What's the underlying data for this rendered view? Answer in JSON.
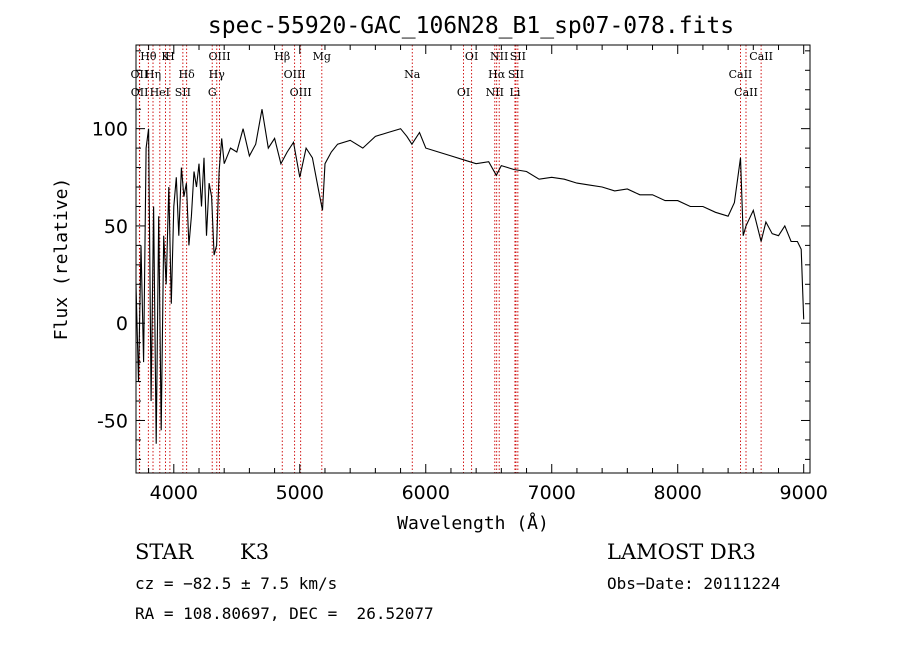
{
  "chart_data": {
    "type": "line",
    "title": "spec-55920-GAC_106N28_B1_sp07-078.fits",
    "xlabel": "Wavelength (Å)",
    "ylabel": "Flux (relative)",
    "xlim": [
      3700,
      9050
    ],
    "ylim": [
      -77,
      143
    ],
    "x_ticks": [
      4000,
      5000,
      6000,
      7000,
      8000,
      9000
    ],
    "y_ticks": [
      -50,
      0,
      50,
      100
    ],
    "series": [
      {
        "name": "flux",
        "x": [
          3700,
          3720,
          3740,
          3760,
          3780,
          3800,
          3820,
          3840,
          3860,
          3880,
          3900,
          3920,
          3940,
          3960,
          3980,
          4000,
          4020,
          4040,
          4060,
          4080,
          4100,
          4120,
          4140,
          4160,
          4180,
          4200,
          4220,
          4240,
          4260,
          4280,
          4300,
          4320,
          4340,
          4360,
          4380,
          4400,
          4450,
          4500,
          4550,
          4600,
          4650,
          4700,
          4750,
          4800,
          4850,
          4900,
          4950,
          5000,
          5050,
          5100,
          5150,
          5180,
          5200,
          5250,
          5300,
          5400,
          5500,
          5600,
          5700,
          5800,
          5850,
          5890,
          5950,
          6000,
          6100,
          6200,
          6300,
          6400,
          6500,
          6560,
          6600,
          6700,
          6800,
          6900,
          7000,
          7100,
          7200,
          7300,
          7400,
          7500,
          7600,
          7700,
          7800,
          7900,
          8000,
          8100,
          8200,
          8300,
          8400,
          8450,
          8498,
          8520,
          8542,
          8600,
          8662,
          8700,
          8750,
          8800,
          8850,
          8900,
          8950,
          8980,
          9000
        ],
        "values": [
          20,
          -30,
          40,
          -20,
          90,
          100,
          -40,
          60,
          -62,
          55,
          -55,
          45,
          20,
          70,
          10,
          60,
          75,
          45,
          80,
          65,
          72,
          40,
          55,
          78,
          70,
          82,
          60,
          85,
          45,
          72,
          65,
          35,
          40,
          78,
          95,
          82,
          90,
          88,
          100,
          86,
          92,
          110,
          90,
          95,
          82,
          88,
          93,
          75,
          90,
          85,
          68,
          58,
          82,
          88,
          92,
          94,
          90,
          96,
          98,
          100,
          96,
          92,
          98,
          90,
          88,
          86,
          84,
          82,
          83,
          76,
          81,
          79,
          78,
          74,
          75,
          74,
          72,
          71,
          70,
          68,
          69,
          66,
          66,
          63,
          63,
          60,
          60,
          57,
          55,
          62,
          85,
          45,
          50,
          58,
          42,
          52,
          46,
          45,
          50,
          42,
          42,
          38,
          2
        ]
      }
    ],
    "line_ids": [
      {
        "label": "Hθ",
        "x": 3798
      },
      {
        "label": "OII",
        "x": 3727
      },
      {
        "label": "OII",
        "x": 3729
      },
      {
        "label": "K",
        "x": 3934
      },
      {
        "label": "Hη",
        "x": 3835
      },
      {
        "label": "HeI",
        "x": 3889
      },
      {
        "label": "H",
        "x": 3969
      },
      {
        "label": "Hδ",
        "x": 4102
      },
      {
        "label": "SII",
        "x": 4072
      },
      {
        "label": "OIII",
        "x": 4363
      },
      {
        "label": "Hγ",
        "x": 4341
      },
      {
        "label": "G",
        "x": 4305
      },
      {
        "label": "Hβ",
        "x": 4861
      },
      {
        "label": "OIII",
        "x": 4959
      },
      {
        "label": "OIII",
        "x": 5007
      },
      {
        "label": "Mg",
        "x": 5175
      },
      {
        "label": "Na",
        "x": 5893
      },
      {
        "label": "OI",
        "x": 6300
      },
      {
        "label": "OI",
        "x": 6364
      },
      {
        "label": "Hα",
        "x": 6563
      },
      {
        "label": "NII",
        "x": 6548
      },
      {
        "label": "NII",
        "x": 6583
      },
      {
        "label": "SII",
        "x": 6716
      },
      {
        "label": "Li",
        "x": 6708
      },
      {
        "label": "SII",
        "x": 6731
      },
      {
        "label": "CaII",
        "x": 8498
      },
      {
        "label": "CaII",
        "x": 8542
      },
      {
        "label": "CaII",
        "x": 8662
      }
    ]
  },
  "info": {
    "class": "STAR",
    "subclass": "K3",
    "survey": "LAMOST DR3",
    "cz": "cz = −82.5 ± 7.5 km/s",
    "obs_date": "Obs−Date: 20111224",
    "coords": "RA = 108.80697, DEC =  26.52077"
  },
  "colors": {
    "spectrum": "#000000",
    "line_markers": "#cc0000",
    "axes": "#000000",
    "background": "#ffffff"
  }
}
